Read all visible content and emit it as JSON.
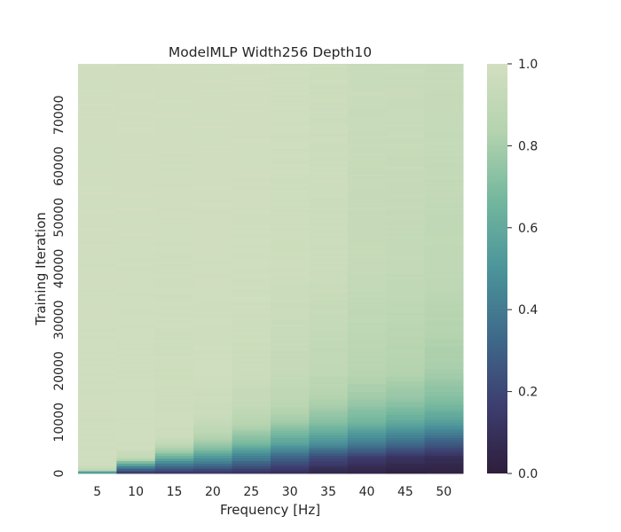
{
  "chart_data": {
    "type": "heatmap",
    "title": "ModelMLP Width256 Depth10",
    "xlabel": "Frequency [Hz]",
    "ylabel": "Training Iteration",
    "categories": [
      "5",
      "10",
      "15",
      "20",
      "25",
      "30",
      "35",
      "40",
      "45",
      "50"
    ],
    "x": [
      5,
      10,
      15,
      20,
      25,
      30,
      35,
      40,
      45,
      50
    ],
    "ylim": [
      0,
      80000
    ],
    "yticks": [
      0,
      10000,
      20000,
      30000,
      40000,
      50000,
      60000,
      70000
    ],
    "colorbar": {
      "range": [
        0.0,
        1.0
      ],
      "ticks": [
        "0.0",
        "0.2",
        "0.4",
        "0.6",
        "0.8",
        "1.0"
      ],
      "colormap": [
        "#2e1e3b",
        "#3d3e70",
        "#3e6a8a",
        "#4b949a",
        "#73b79e",
        "#b4d3ae",
        "#d2dfc0"
      ]
    },
    "series": [
      {
        "x": 5,
        "profile": [
          [
            0,
            0.05
          ],
          [
            400,
            0.85
          ],
          [
            1500,
            0.98
          ],
          [
            80000,
            0.99
          ]
        ]
      },
      {
        "x": 10,
        "profile": [
          [
            0,
            0.1
          ],
          [
            1500,
            0.5
          ],
          [
            3000,
            0.9
          ],
          [
            5000,
            0.98
          ],
          [
            80000,
            0.99
          ]
        ]
      },
      {
        "x": 15,
        "profile": [
          [
            0,
            0.1
          ],
          [
            2000,
            0.45
          ],
          [
            4000,
            0.75
          ],
          [
            6000,
            0.92
          ],
          [
            8000,
            0.97
          ],
          [
            80000,
            0.99
          ]
        ]
      },
      {
        "x": 20,
        "profile": [
          [
            0,
            0.1
          ],
          [
            2500,
            0.45
          ],
          [
            5000,
            0.72
          ],
          [
            8000,
            0.88
          ],
          [
            11000,
            0.95
          ],
          [
            20000,
            0.98
          ],
          [
            80000,
            0.99
          ]
        ]
      },
      {
        "x": 25,
        "profile": [
          [
            0,
            0.1
          ],
          [
            3000,
            0.4
          ],
          [
            6000,
            0.68
          ],
          [
            9000,
            0.82
          ],
          [
            13000,
            0.92
          ],
          [
            20000,
            0.96
          ],
          [
            40000,
            0.98
          ],
          [
            80000,
            0.99
          ]
        ]
      },
      {
        "x": 30,
        "profile": [
          [
            0,
            0.07
          ],
          [
            3000,
            0.3
          ],
          [
            6000,
            0.58
          ],
          [
            10000,
            0.78
          ],
          [
            14000,
            0.88
          ],
          [
            20000,
            0.93
          ],
          [
            40000,
            0.97
          ],
          [
            80000,
            0.98
          ]
        ]
      },
      {
        "x": 35,
        "profile": [
          [
            0,
            0.05
          ],
          [
            3000,
            0.2
          ],
          [
            6000,
            0.5
          ],
          [
            10000,
            0.72
          ],
          [
            14000,
            0.82
          ],
          [
            20000,
            0.9
          ],
          [
            40000,
            0.96
          ],
          [
            80000,
            0.97
          ]
        ]
      },
      {
        "x": 40,
        "profile": [
          [
            0,
            0.03
          ],
          [
            3000,
            0.15
          ],
          [
            6000,
            0.42
          ],
          [
            10000,
            0.65
          ],
          [
            14000,
            0.77
          ],
          [
            20000,
            0.86
          ],
          [
            40000,
            0.93
          ],
          [
            80000,
            0.95
          ]
        ]
      },
      {
        "x": 45,
        "profile": [
          [
            0,
            0.02
          ],
          [
            3000,
            0.1
          ],
          [
            6000,
            0.35
          ],
          [
            10000,
            0.6
          ],
          [
            14000,
            0.74
          ],
          [
            20000,
            0.84
          ],
          [
            40000,
            0.92
          ],
          [
            80000,
            0.95
          ]
        ]
      },
      {
        "x": 50,
        "profile": [
          [
            0,
            0.02
          ],
          [
            3000,
            0.08
          ],
          [
            6000,
            0.28
          ],
          [
            10000,
            0.55
          ],
          [
            14000,
            0.7
          ],
          [
            20000,
            0.8
          ],
          [
            40000,
            0.9
          ],
          [
            80000,
            0.94
          ]
        ]
      }
    ]
  }
}
